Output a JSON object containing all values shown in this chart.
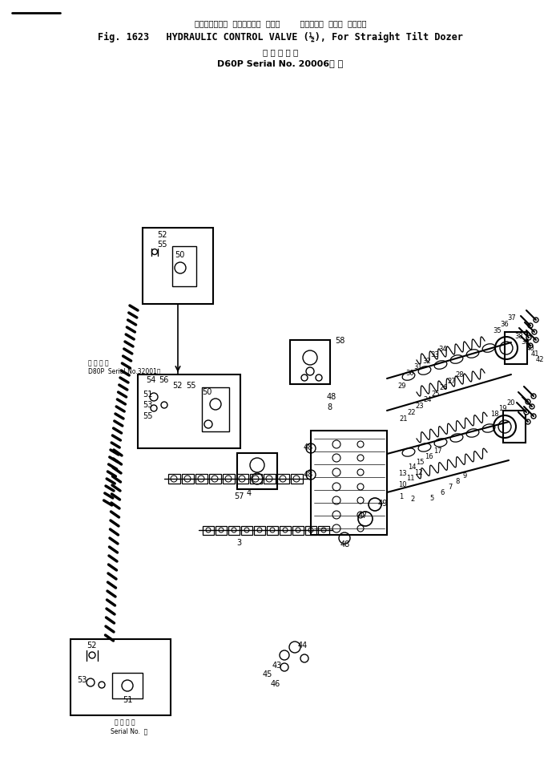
{
  "title_line1_jp": "ハイドロリック  コントロール  バルブ        ストレート  チルト  ドーザ用",
  "title_line2_en": "Fig. 1623   HYDRAULIC CONTROL VALVE (½), For Straight Tilt Dozer",
  "title_line3": "（ 適 用 号 機",
  "title_line4": "D60P Serial No. 20006～ ）",
  "label_d80p_1": "適 用 号 機",
  "label_d80p_2": "D80P  Serial No.32001～",
  "label_bottom_1": "適 用 号 機",
  "label_bottom_2": "Serial No.  ～",
  "bg_color": "#ffffff",
  "line_color": "#000000",
  "fig_width": 6.99,
  "fig_height": 9.45,
  "dpi": 100
}
